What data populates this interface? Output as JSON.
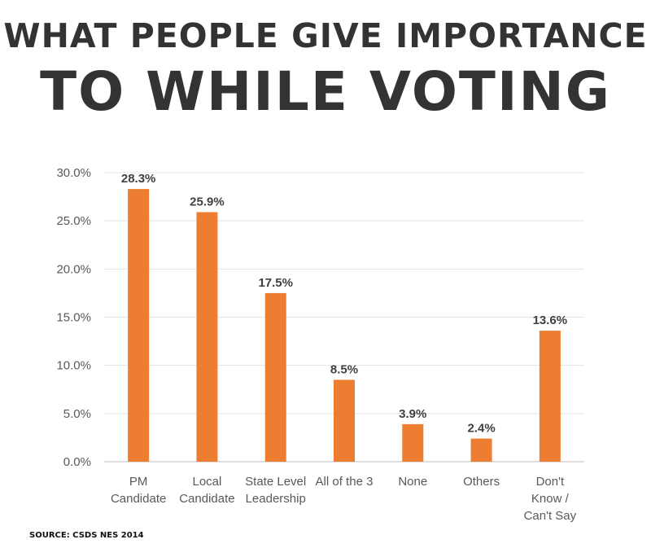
{
  "title": {
    "line1": "WHAT PEOPLE GIVE IMPORTANCE",
    "line2": "TO WHILE VOTING"
  },
  "source": "SOURCE: CSDS NES 2014",
  "chart_data": {
    "type": "bar",
    "categories": [
      [
        "PM",
        "Candidate"
      ],
      [
        "Local",
        "Candidate"
      ],
      [
        "State Level",
        "Leadership"
      ],
      [
        "All of the 3"
      ],
      [
        "None"
      ],
      [
        "Others"
      ],
      [
        "Don't",
        "Know /",
        "Can't Say"
      ]
    ],
    "values": [
      28.3,
      25.9,
      17.5,
      8.5,
      3.9,
      2.4,
      13.6
    ],
    "data_labels": [
      "28.3%",
      "25.9%",
      "17.5%",
      "8.5%",
      "3.9%",
      "2.4%",
      "13.6%"
    ],
    "yticks": [
      "0.0%",
      "5.0%",
      "10.0%",
      "15.0%",
      "20.0%",
      "25.0%",
      "30.0%"
    ],
    "ylim": [
      0,
      30
    ],
    "grid": true,
    "bar_color": "#ED7D31",
    "xlabel": "",
    "ylabel": ""
  }
}
